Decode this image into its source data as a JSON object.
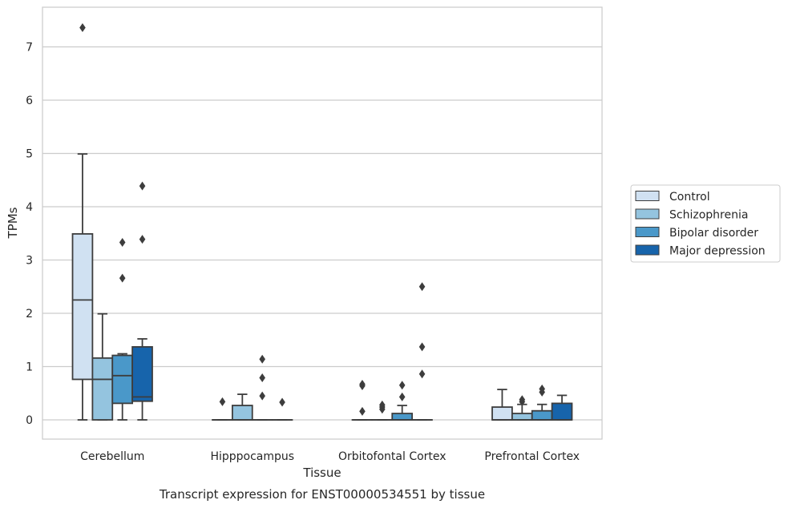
{
  "chart_data": {
    "type": "box",
    "title": "",
    "caption": "Transcript expression for ENST00000534551 by tissue",
    "xlabel": "Tissue",
    "ylabel": "TPMs",
    "ylim": [
      -0.35,
      7.7
    ],
    "yticks": [
      0,
      1,
      2,
      3,
      4,
      5,
      6,
      7
    ],
    "grid": "horizontal",
    "legend_position": "right",
    "categories": [
      "Cerebellum",
      "Hipppocampus",
      "Orbitofontal Cortex",
      "Prefrontal Cortex"
    ],
    "series": [
      {
        "name": "Control",
        "color": "#d0e1f2",
        "boxes": [
          {
            "whisker_low": 0,
            "q1": 0.76,
            "median": 2.25,
            "q3": 3.49,
            "whisker_high": 4.99,
            "outliers": [
              7.36
            ]
          },
          {
            "whisker_low": 0,
            "q1": 0,
            "median": 0,
            "q3": 0,
            "whisker_high": 0,
            "outliers": [
              0.34
            ]
          },
          {
            "whisker_low": 0,
            "q1": 0,
            "median": 0,
            "q3": 0,
            "whisker_high": 0,
            "outliers": [
              0.16,
              0.64,
              0.67
            ]
          },
          {
            "whisker_low": 0,
            "q1": 0,
            "median": 0,
            "q3": 0.24,
            "whisker_high": 0.57,
            "outliers": []
          }
        ]
      },
      {
        "name": "Schizophrenia",
        "color": "#94c4df",
        "boxes": [
          {
            "whisker_low": 0,
            "q1": 0,
            "median": 0.76,
            "q3": 1.16,
            "whisker_high": 1.99,
            "outliers": []
          },
          {
            "whisker_low": 0,
            "q1": 0,
            "median": 0,
            "q3": 0.27,
            "whisker_high": 0.48,
            "outliers": []
          },
          {
            "whisker_low": 0,
            "q1": 0,
            "median": 0,
            "q3": 0,
            "whisker_high": 0,
            "outliers": [
              0.2,
              0.24,
              0.28
            ]
          },
          {
            "whisker_low": 0,
            "q1": 0,
            "median": 0,
            "q3": 0.12,
            "whisker_high": 0.29,
            "outliers": [
              0.34,
              0.38
            ]
          }
        ]
      },
      {
        "name": "Bipolar disorder",
        "color": "#4a98c9",
        "boxes": [
          {
            "whisker_low": 0,
            "q1": 0.31,
            "median": 0.83,
            "q3": 1.21,
            "whisker_high": 1.24,
            "outliers": [
              2.66,
              3.33
            ]
          },
          {
            "whisker_low": 0,
            "q1": 0,
            "median": 0,
            "q3": 0,
            "whisker_high": 0,
            "outliers": [
              0.45,
              0.79,
              1.14
            ]
          },
          {
            "whisker_low": 0,
            "q1": 0,
            "median": 0,
            "q3": 0.12,
            "whisker_high": 0.27,
            "outliers": [
              0.43,
              0.65
            ]
          },
          {
            "whisker_low": 0,
            "q1": 0,
            "median": 0,
            "q3": 0.17,
            "whisker_high": 0.29,
            "outliers": [
              0.52,
              0.58
            ]
          }
        ]
      },
      {
        "name": "Major depression",
        "color": "#1764ab",
        "boxes": [
          {
            "whisker_low": 0,
            "q1": 0.35,
            "median": 0.43,
            "q3": 1.37,
            "whisker_high": 1.52,
            "outliers": [
              3.39,
              4.39
            ]
          },
          {
            "whisker_low": 0,
            "q1": 0,
            "median": 0,
            "q3": 0,
            "whisker_high": 0,
            "outliers": [
              0.33
            ]
          },
          {
            "whisker_low": 0,
            "q1": 0,
            "median": 0,
            "q3": 0,
            "whisker_high": 0,
            "outliers": [
              0.86,
              1.37,
              2.5
            ]
          },
          {
            "whisker_low": 0,
            "q1": 0,
            "median": 0,
            "q3": 0.31,
            "whisker_high": 0.46,
            "outliers": []
          }
        ]
      }
    ]
  }
}
